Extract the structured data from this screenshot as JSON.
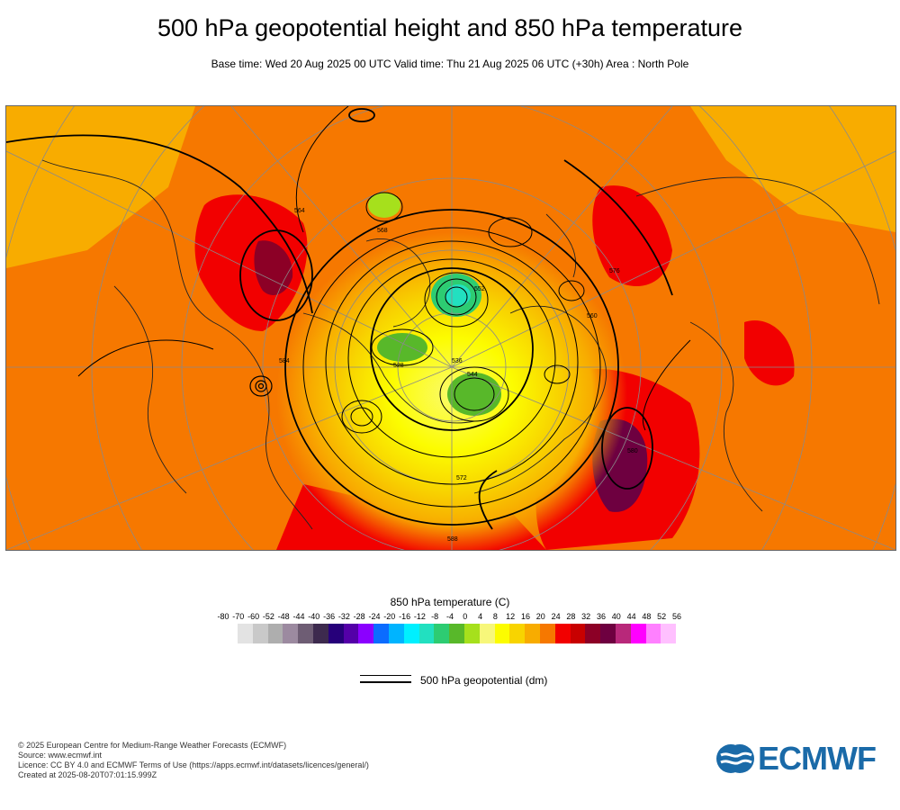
{
  "header": {
    "title": "500 hPa geopotential height and 850 hPa temperature",
    "subtitle": "Base time: Wed 20 Aug 2025 00 UTC Valid time: Thu 21 Aug 2025 06 UTC (+30h) Area : North Pole"
  },
  "map": {
    "area": "North Pole",
    "contour_labels": [
      "568",
      "564",
      "576",
      "584",
      "552",
      "544",
      "536",
      "528",
      "560",
      "572",
      "580",
      "588"
    ]
  },
  "legend": {
    "title": "850 hPa temperature (C)",
    "ticks": [
      "-80",
      "-70",
      "-60",
      "-52",
      "-48",
      "-44",
      "-40",
      "-36",
      "-32",
      "-28",
      "-24",
      "-20",
      "-16",
      "-12",
      "-8",
      "-4",
      "0",
      "4",
      "8",
      "12",
      "16",
      "20",
      "24",
      "28",
      "32",
      "36",
      "40",
      "44",
      "48",
      "52",
      "56"
    ],
    "colors": [
      "#e3e3e3",
      "#c9c9c9",
      "#aeaeae",
      "#9c8aa0",
      "#6e5d74",
      "#3d2a4e",
      "#26007a",
      "#5400a8",
      "#8b00ff",
      "#0b6cff",
      "#00b4ff",
      "#00f0ff",
      "#22e0c0",
      "#2dcc72",
      "#58b82a",
      "#a6e01c",
      "#f7f77a",
      "#fcfc00",
      "#f8d400",
      "#f8ac00",
      "#f67800",
      "#f20000",
      "#c80000",
      "#8c0026",
      "#6e0040",
      "#b8287a",
      "#ff00ff",
      "#ff80ff",
      "#ffc0ff",
      "#e8c8e8",
      "#e6e6e6"
    ],
    "geopotential_label": "500 hPa geopotential (dm)"
  },
  "footer": {
    "lines": [
      "© 2025 European Centre for Medium-Range Weather Forecasts (ECMWF)",
      "Source: www.ecmwf.int",
      "Licence: CC BY 4.0 and ECMWF Terms of Use (https://apps.ecmwf.int/datasets/licences/general/)",
      "Created at 2025-08-20T07:01:15.999Z"
    ],
    "logo_text": "ECMWF"
  }
}
